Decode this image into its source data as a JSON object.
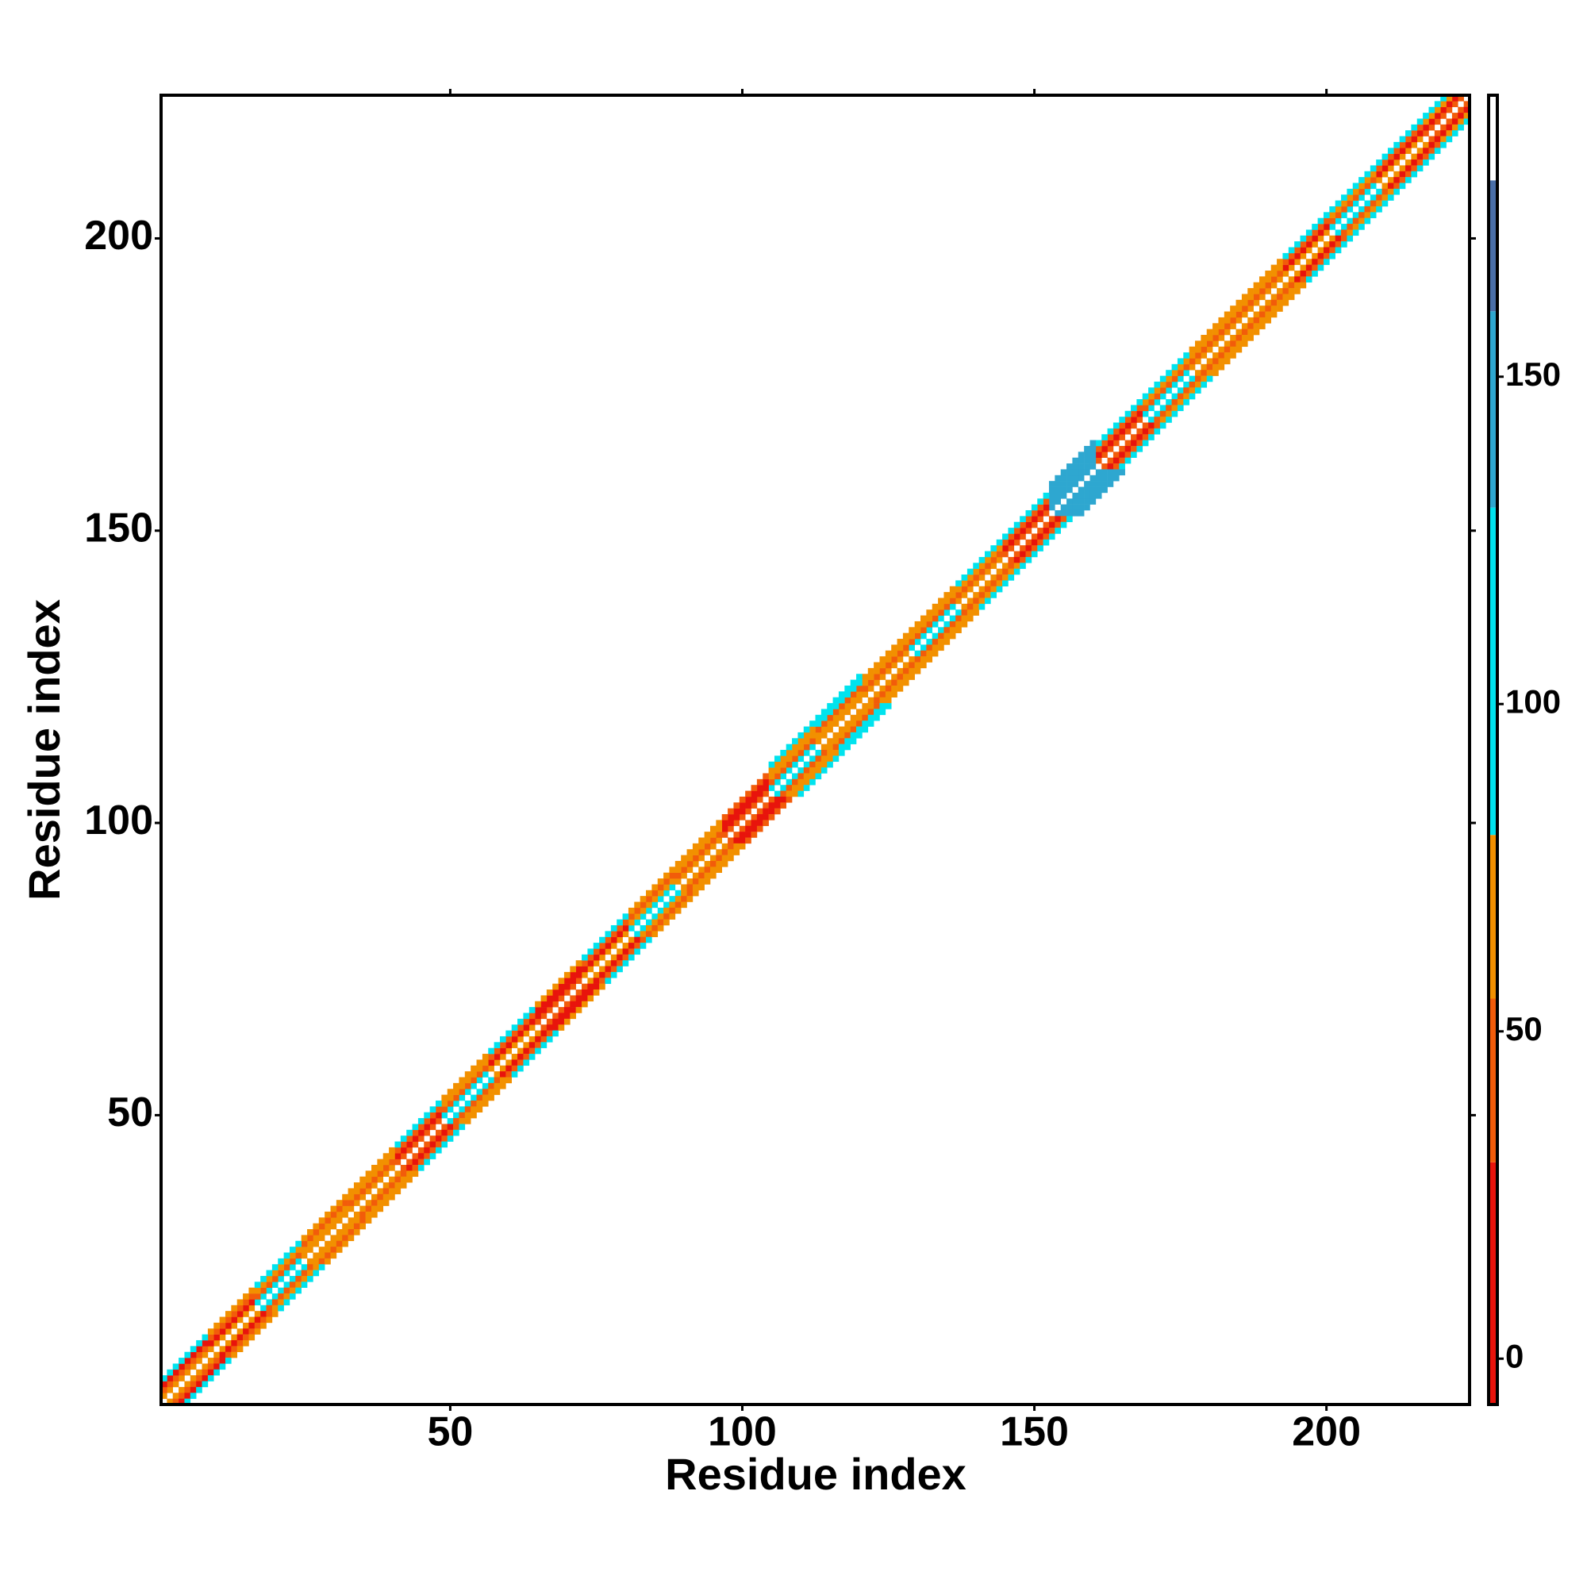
{
  "chart_data": {
    "type": "heatmap",
    "xlabel": "Residue index",
    "ylabel": "Residue index",
    "xlim": [
      0.5,
      224.5
    ],
    "ylim": [
      0.5,
      224.5
    ],
    "xticks": [
      50,
      100,
      150,
      200
    ],
    "yticks": [
      50,
      100,
      150,
      200
    ],
    "x": [
      1,
      9,
      17,
      25,
      33,
      41,
      49,
      57,
      65,
      73,
      81,
      89,
      97,
      105,
      113,
      121,
      129,
      137,
      145,
      153,
      161,
      169,
      177,
      185,
      193,
      201,
      209,
      217
    ],
    "series": [
      {
        "values": [
          65,
          60,
          100,
          60,
          60,
          40,
          100,
          60,
          40,
          60,
          100,
          60,
          40,
          100,
          60,
          60,
          100,
          60,
          40,
          140,
          40,
          100,
          60,
          60,
          60,
          100,
          60,
          40
        ]
      },
      {
        "values": [
          40,
          10,
          40,
          65,
          40,
          10,
          40,
          10,
          10,
          10,
          65,
          40,
          10,
          40,
          65,
          40,
          40,
          40,
          10,
          140,
          10,
          40,
          40,
          40,
          10,
          40,
          10,
          10
        ]
      },
      {
        "values": [
          10,
          40,
          65,
          40,
          65,
          40,
          65,
          40,
          10,
          40,
          40,
          65,
          10,
          65,
          40,
          65,
          65,
          65,
          40,
          140,
          40,
          65,
          65,
          65,
          40,
          65,
          40,
          65
        ]
      },
      {
        "values": [
          100,
          65,
          100,
          65,
          65,
          100,
          65,
          100,
          65,
          100,
          65,
          65,
          40,
          65,
          100,
          65,
          65,
          100,
          100,
          140,
          100,
          100,
          65,
          65,
          100,
          100,
          100,
          100
        ]
      },
      {
        "values": [
          null,
          null,
          null,
          null,
          null,
          null,
          null,
          null,
          null,
          null,
          null,
          null,
          null,
          100,
          100,
          null,
          null,
          null,
          null,
          140,
          null,
          null,
          null,
          null,
          null,
          null,
          null,
          null
        ]
      }
    ],
    "colorbar": {
      "lim": [
        -7,
        193
      ],
      "ticks": [
        0,
        50,
        100,
        150
      ],
      "bands": [
        {
          "lim": [
            -7,
            30
          ],
          "color": "#e8140c"
        },
        {
          "lim": [
            30,
            55
          ],
          "color": "#f25c0a"
        },
        {
          "lim": [
            55,
            80
          ],
          "color": "#f29000"
        },
        {
          "lim": [
            80,
            130
          ],
          "color": "#00e3ee"
        },
        {
          "lim": [
            130,
            160
          ],
          "color": "#2ea7d0"
        },
        {
          "lim": [
            160,
            180
          ],
          "color": "#4a6fa8"
        },
        {
          "lim": [
            180,
            193
          ],
          "color": "#ffffff"
        }
      ]
    }
  }
}
